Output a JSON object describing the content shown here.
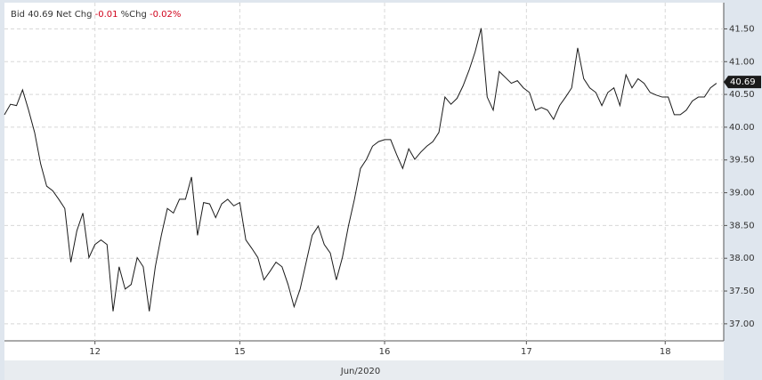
{
  "chart_data": {
    "type": "line",
    "quote": {
      "bid_label": "Bid",
      "bid": "40.69",
      "net_chg_label": "Net Chg",
      "net_chg": "-0.01",
      "pct_chg_label": "%Chg",
      "pct_chg": "-0.02%"
    },
    "xlabel": "Jun/2020",
    "series": [
      {
        "color": "#1a1a1a",
        "x": [
          0,
          1,
          2,
          3,
          4,
          5,
          6,
          7,
          8,
          9,
          10,
          11,
          12,
          13,
          14,
          15,
          16,
          17,
          18,
          19,
          20,
          21,
          22,
          23,
          24,
          25,
          26,
          27,
          28,
          29,
          30,
          31,
          32,
          33,
          34,
          35,
          36,
          37,
          38,
          39,
          40,
          41,
          42,
          43,
          44,
          45,
          46,
          47,
          48,
          49,
          50,
          51,
          52,
          53,
          54,
          55,
          56,
          57,
          58,
          59,
          60,
          61,
          62,
          63,
          64,
          65,
          66,
          67,
          68,
          69,
          70,
          71,
          72,
          73,
          74,
          75,
          76,
          77,
          78,
          79,
          80,
          81,
          82,
          83,
          84,
          85,
          86,
          87,
          88,
          89,
          90,
          91,
          92,
          93,
          94,
          95,
          96,
          97,
          98,
          99,
          100,
          101,
          102,
          103,
          104,
          105,
          106,
          107,
          108,
          109,
          110,
          111,
          112,
          113,
          114,
          115,
          116,
          117,
          118
        ],
        "values": [
          40.19,
          40.35,
          40.33,
          40.57,
          40.26,
          39.92,
          39.44,
          39.1,
          39.03,
          38.9,
          38.76,
          37.94,
          38.42,
          38.69,
          38.01,
          38.21,
          38.28,
          38.21,
          37.19,
          37.87,
          37.53,
          37.6,
          38.01,
          37.87,
          37.19,
          37.87,
          38.35,
          38.76,
          38.69,
          38.9,
          38.9,
          39.24,
          38.35,
          38.85,
          38.83,
          38.62,
          38.83,
          38.9,
          38.8,
          38.85,
          38.28,
          38.15,
          38.01,
          37.67,
          37.8,
          37.94,
          37.87,
          37.6,
          37.26,
          37.53,
          37.94,
          38.35,
          38.49,
          38.21,
          38.08,
          37.67,
          38.01,
          38.49,
          38.9,
          39.37,
          39.51,
          39.71,
          39.78,
          39.81,
          39.81,
          39.58,
          39.37,
          39.67,
          39.51,
          39.62,
          39.71,
          39.78,
          39.92,
          40.46,
          40.35,
          40.44,
          40.63,
          40.87,
          41.15,
          41.51,
          40.46,
          40.26,
          40.85,
          40.76,
          40.67,
          40.71,
          40.6,
          40.53,
          40.26,
          40.3,
          40.26,
          40.12,
          40.33,
          40.46,
          40.6,
          41.21,
          40.74,
          40.6,
          40.53,
          40.33,
          40.53,
          40.6,
          40.33,
          40.8,
          40.6,
          40.74,
          40.67,
          40.53,
          40.49,
          40.46,
          40.46,
          40.19,
          40.19,
          40.26,
          40.4,
          40.46,
          40.46,
          40.6,
          40.67
        ]
      }
    ],
    "last_value": {
      "value": 40.69,
      "label": "40.69"
    },
    "xlim": [
      0,
      119.2
    ],
    "xticks": [
      {
        "value": 15,
        "label": "12"
      },
      {
        "value": 39,
        "label": "15"
      },
      {
        "value": 63,
        "label": "16"
      },
      {
        "value": 86.5,
        "label": "17"
      },
      {
        "value": 109.5,
        "label": "18"
      }
    ],
    "ylim": [
      36.74,
      41.9
    ],
    "yticks": [
      {
        "value": 37,
        "label": "37.00"
      },
      {
        "value": 37.5,
        "label": "37.50"
      },
      {
        "value": 38,
        "label": "38.00"
      },
      {
        "value": 38.5,
        "label": "38.50"
      },
      {
        "value": 39,
        "label": "39.00"
      },
      {
        "value": 39.5,
        "label": "39.50"
      },
      {
        "value": 40,
        "label": "40.00"
      },
      {
        "value": 40.5,
        "label": "40.50"
      },
      {
        "value": 41,
        "label": "41.00"
      },
      {
        "value": 41.5,
        "label": "41.50"
      }
    ],
    "grid": true
  }
}
